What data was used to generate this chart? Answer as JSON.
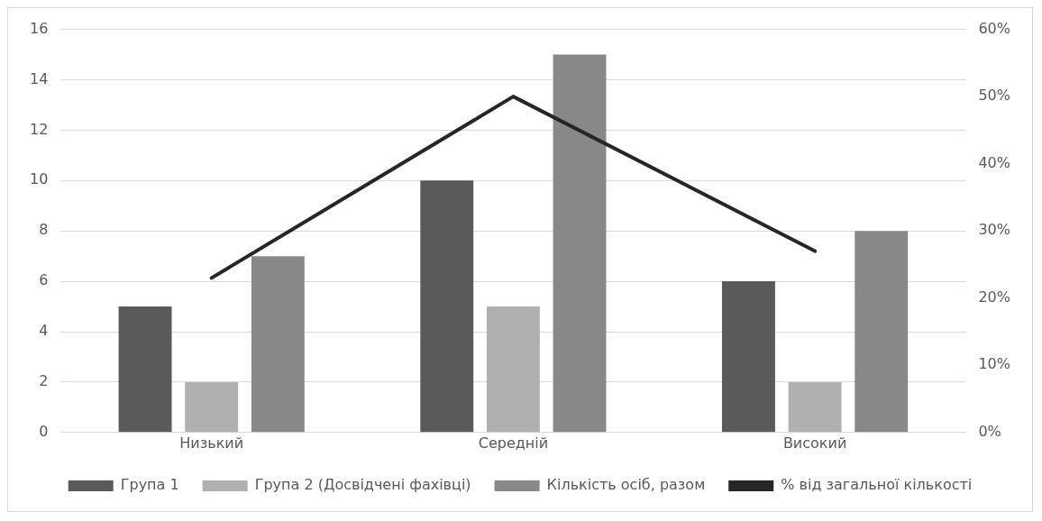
{
  "chart_data": {
    "type": "bar",
    "categories": [
      "Низький",
      "Середній",
      "Високий"
    ],
    "series": [
      {
        "name": "Група 1",
        "color": "#5a5a5a",
        "values": [
          5,
          10,
          6
        ]
      },
      {
        "name": "Група 2 (Досвідчені фахівці)",
        "color": "#b0b0b0",
        "values": [
          2,
          5,
          2
        ]
      },
      {
        "name": "Кількість осіб, разом",
        "color": "#888888",
        "values": [
          7,
          15,
          8
        ]
      },
      {
        "name": "% від загальної кількості",
        "type": "line",
        "axis": "y2",
        "color": "#262626",
        "values": [
          23,
          50,
          27
        ]
      }
    ],
    "ylim": [
      0,
      16
    ],
    "yticks": [
      0,
      2,
      4,
      6,
      8,
      10,
      12,
      14,
      16
    ],
    "y2lim": [
      0,
      60
    ],
    "y2ticks": [
      {
        "value": 0,
        "label": "0%"
      },
      {
        "value": 10,
        "label": "10%"
      },
      {
        "value": 20,
        "label": "20%"
      },
      {
        "value": 30,
        "label": "30%"
      },
      {
        "value": 40,
        "label": "40%"
      },
      {
        "value": 50,
        "label": "50%"
      },
      {
        "value": 60,
        "label": "60%"
      }
    ],
    "grid": "y",
    "legend": "bottom",
    "marker": "none",
    "line_style": "solid"
  }
}
